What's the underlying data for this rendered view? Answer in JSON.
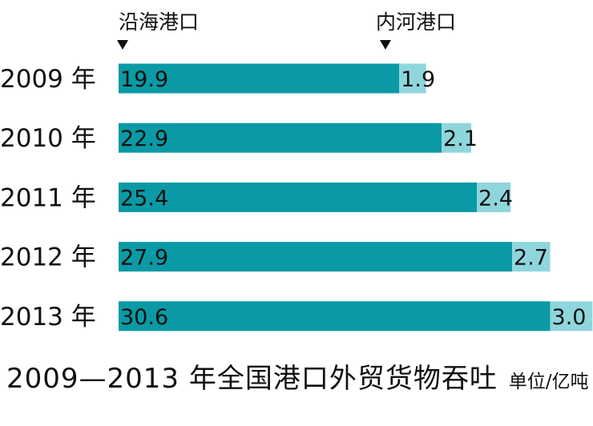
{
  "chart_data": {
    "type": "bar",
    "stacked": true,
    "orientation": "horizontal",
    "categories": [
      "2009 年",
      "2010 年",
      "2011 年",
      "2012 年",
      "2013 年"
    ],
    "series": [
      {
        "name": "沿海港口",
        "values": [
          19.9,
          22.9,
          25.4,
          27.9,
          30.6
        ],
        "color": "#0a9aa5"
      },
      {
        "name": "内河港口",
        "values": [
          1.9,
          2.1,
          2.4,
          2.7,
          3.0
        ],
        "color": "#8fd6dc"
      }
    ],
    "title": "2009—2013 年全国港口外贸货物吞吐",
    "unit": "单位/亿吨",
    "xlabel": "",
    "ylabel": "",
    "legend_position": "top",
    "grid": false
  }
}
